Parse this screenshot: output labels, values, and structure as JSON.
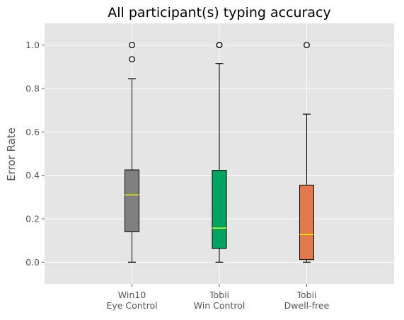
{
  "chart_data": {
    "type": "box",
    "title": "All participant(s) typing accuracy",
    "xlabel": "",
    "ylabel": "Error Rate",
    "ylim": [
      -0.1,
      1.1
    ],
    "yticks": [
      "0.0",
      "0.2",
      "0.4",
      "0.6",
      "0.8",
      "1.0"
    ],
    "grid": true,
    "categories": [
      [
        "Win10",
        "Eye Control"
      ],
      [
        "Tobii",
        "Win Control"
      ],
      [
        "Tobii",
        "Dwell-free"
      ]
    ],
    "boxes": [
      {
        "whisker_low": 0.0,
        "q1": 0.14,
        "median": 0.31,
        "q3": 0.425,
        "whisker_high": 0.845,
        "outliers": [
          0.935,
          1.0
        ],
        "color": "#808080"
      },
      {
        "whisker_low": 0.0,
        "q1": 0.063,
        "median": 0.157,
        "q3": 0.423,
        "whisker_high": 0.915,
        "outliers": [
          1.0,
          1.0
        ],
        "color": "#00a35f"
      },
      {
        "whisker_low": 0.0,
        "q1": 0.012,
        "median": 0.127,
        "q3": 0.355,
        "whisker_high": 0.682,
        "outliers": [
          1.0
        ],
        "color": "#e07a4b"
      }
    ],
    "colors": {
      "plot_bg": "#e5e5e5",
      "grid": "#ffffff",
      "median": "#ffff00",
      "line": "#000000"
    }
  }
}
